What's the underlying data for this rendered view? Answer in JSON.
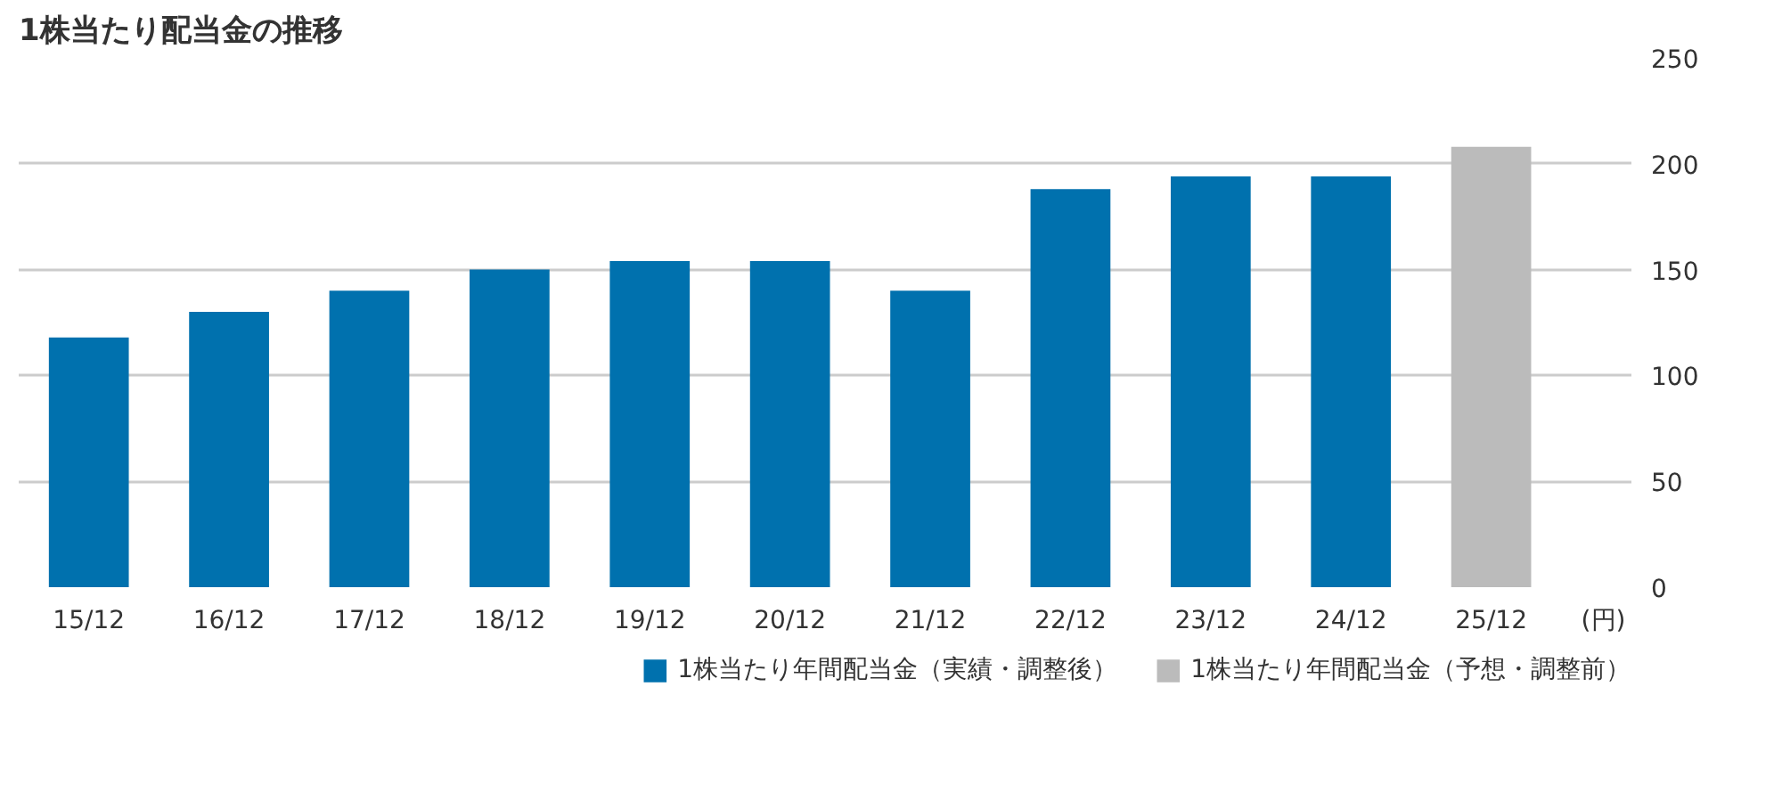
{
  "chart_data": {
    "type": "bar",
    "title": "1株当たり配当金の推移",
    "annotations": [
      "(円)"
    ],
    "categories": [
      "15/12",
      "16/12",
      "17/12",
      "18/12",
      "19/12",
      "20/12",
      "21/12",
      "22/12",
      "23/12",
      "24/12",
      "25/12"
    ],
    "series": [
      {
        "name": "1株当たり年間配当金（実績・調整後）",
        "color": "#0071ae",
        "values": [
          118,
          130,
          140,
          150,
          154,
          154,
          140,
          188,
          194,
          194,
          null
        ]
      },
      {
        "name": "1株当たり年間配当金（予想・調整前）",
        "color": "#bbbbbb",
        "values": [
          null,
          null,
          null,
          null,
          null,
          null,
          null,
          null,
          null,
          null,
          208
        ]
      }
    ],
    "ylim": [
      0,
      250
    ],
    "yticks": [
      0,
      50,
      100,
      150,
      200,
      250
    ],
    "grid": "y",
    "legend": "bottom right"
  }
}
